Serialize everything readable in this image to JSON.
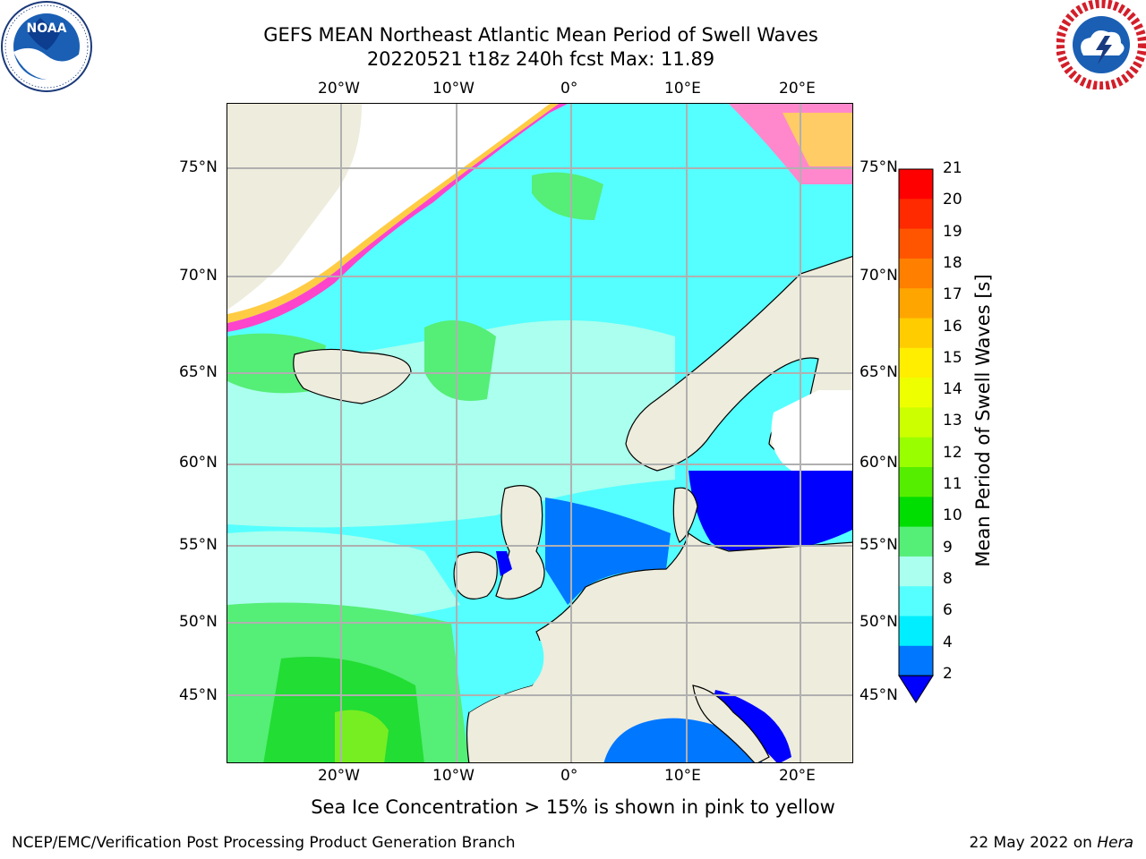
{
  "header": {
    "title_line1": "GEFS MEAN Northeast Atlantic Mean Period of Swell Waves",
    "title_line2": "20220521 t18z 240h fcst   Max: 11.89"
  },
  "logos": {
    "left": {
      "name": "NOAA",
      "ring_text": "NATIONAL OCEANIC AND ATMOSPHERIC ADMINISTRATION · U.S. DEPARTMENT OF COMMERCE",
      "icon": "noaa-logo"
    },
    "right": {
      "name": "NATIONAL WEATHER SERVICE",
      "icon": "nws-logo"
    }
  },
  "map": {
    "lon_labels_top": [
      "20°W",
      "10°W",
      "0°",
      "10°E",
      "20°E"
    ],
    "lon_labels_bottom": [
      "20°W",
      "10°W",
      "0°",
      "10°E",
      "20°E"
    ],
    "lat_labels_left": [
      "75°N",
      "70°N",
      "65°N",
      "60°N",
      "55°N",
      "50°N",
      "45°N"
    ],
    "lat_labels_right": [
      "75°N",
      "70°N",
      "65°N",
      "60°N",
      "55°N",
      "50°N",
      "45°N"
    ],
    "land_color": "#eeecdc",
    "grid_color": "#b0b0b0"
  },
  "colorbar": {
    "title": "Mean Period of Swell Waves [s]",
    "labels": [
      "21",
      "20",
      "19",
      "18",
      "17",
      "16",
      "15",
      "14",
      "13",
      "12",
      "11",
      "10",
      "9",
      "8",
      "6",
      "4",
      "2"
    ],
    "colors": [
      "#ff0000",
      "#ff2a00",
      "#ff5500",
      "#ff7f00",
      "#ffa500",
      "#ffcc00",
      "#ffee00",
      "#eeff00",
      "#ccff00",
      "#99ff00",
      "#55ee00",
      "#00dd00",
      "#55ee77",
      "#aaffee",
      "#55ffff",
      "#00eeff",
      "#0077ff"
    ],
    "extend_below_color": "#0000ff"
  },
  "notes": {
    "sea_ice": "Sea Ice Concentration > 15% is shown in pink to yellow"
  },
  "footer": {
    "left": "NCEP/EMC/Verification Post Processing Product Generation Branch",
    "right_date": "22 May 2022 on",
    "right_host": "Hera"
  }
}
